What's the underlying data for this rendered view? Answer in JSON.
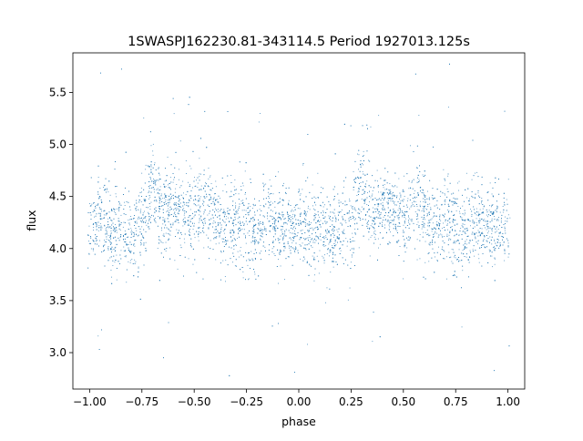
{
  "chart_data": {
    "type": "scatter",
    "title": "1SWASPJ162230.81-343114.5 Period 1927013.125s",
    "xlabel": "phase",
    "ylabel": "flux",
    "xlim": [
      -1.08,
      1.08
    ],
    "ylim": [
      2.65,
      5.88
    ],
    "xticks": [
      -1.0,
      -0.75,
      -0.5,
      -0.25,
      0.0,
      0.25,
      0.5,
      0.75,
      1.0
    ],
    "xtick_labels": [
      "−1.00",
      "−0.75",
      "−0.50",
      "−0.25",
      "0.00",
      "0.25",
      "0.50",
      "0.75",
      "1.00"
    ],
    "yticks": [
      3.0,
      3.5,
      4.0,
      4.5,
      5.0,
      5.5
    ],
    "ytick_labels": [
      "3.0",
      "3.5",
      "4.0",
      "4.5",
      "5.0",
      "5.5"
    ],
    "grid": false,
    "legend": "none",
    "marker_color": "#1f77b4",
    "points_note": "phase-folded light curve; envelope below gives representative flux band per phase",
    "series": [
      {
        "x": [
          -1.0,
          -0.95,
          -0.9,
          -0.85,
          -0.8,
          -0.75,
          -0.7,
          -0.65,
          -0.6,
          -0.55,
          -0.5,
          -0.45,
          -0.4,
          -0.35,
          -0.3,
          -0.25,
          -0.2,
          -0.15,
          -0.1,
          -0.05,
          0.0,
          0.05,
          0.1,
          0.15,
          0.2,
          0.25,
          0.3,
          0.35,
          0.4,
          0.45,
          0.5,
          0.55,
          0.6,
          0.65,
          0.7,
          0.75,
          0.8,
          0.85,
          0.9,
          0.95,
          1.0
        ],
        "center": [
          4.2,
          4.3,
          4.15,
          4.2,
          4.1,
          4.25,
          4.65,
          4.3,
          4.4,
          4.35,
          4.3,
          4.45,
          4.3,
          4.2,
          4.25,
          4.15,
          4.2,
          4.3,
          4.25,
          4.2,
          4.25,
          4.15,
          4.2,
          4.1,
          4.2,
          4.25,
          4.65,
          4.3,
          4.4,
          4.35,
          4.3,
          4.45,
          4.3,
          4.2,
          4.25,
          4.15,
          4.2,
          4.3,
          4.25,
          4.2,
          4.2
        ],
        "spread": [
          0.28,
          0.3,
          0.32,
          0.3,
          0.35,
          0.4,
          0.35,
          0.3,
          0.28,
          0.3,
          0.32,
          0.34,
          0.3,
          0.3,
          0.32,
          0.38,
          0.35,
          0.3,
          0.3,
          0.3,
          0.3,
          0.32,
          0.34,
          0.32,
          0.35,
          0.4,
          0.35,
          0.3,
          0.28,
          0.3,
          0.32,
          0.34,
          0.3,
          0.3,
          0.32,
          0.38,
          0.35,
          0.3,
          0.3,
          0.3,
          0.28
        ]
      }
    ]
  }
}
